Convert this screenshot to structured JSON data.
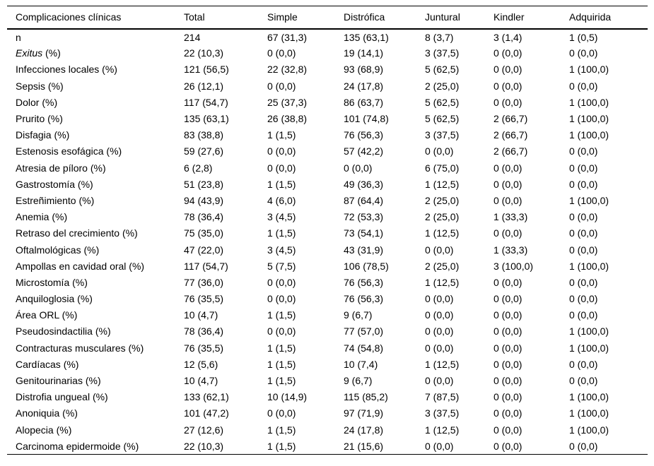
{
  "table": {
    "headers": [
      "Complicaciones clínicas",
      "Total",
      "Simple",
      "Distrófica",
      "Juntural",
      "Kindler",
      "Adquirida"
    ],
    "rows": [
      {
        "label": "n",
        "values": [
          "214",
          "67 (31,3)",
          "135 (63,1)",
          "8 (3,7)",
          "3 (1,4)",
          "1 (0,5)"
        ]
      },
      {
        "label": "Exitus (%)",
        "em": "Exitus",
        "values": [
          "22 (10,3)",
          "0 (0,0)",
          "19 (14,1)",
          "3 (37,5)",
          "0 (0,0)",
          "0 (0,0)"
        ]
      },
      {
        "label": "Infecciones locales (%)",
        "values": [
          "121 (56,5)",
          "22 (32,8)",
          "93 (68,9)",
          "5 (62,5)",
          "0 (0,0)",
          "1 (100,0)"
        ]
      },
      {
        "label": "Sepsis (%)",
        "values": [
          "26 (12,1)",
          "0 (0,0)",
          "24 (17,8)",
          "2 (25,0)",
          "0 (0,0)",
          "0 (0,0)"
        ]
      },
      {
        "label": "Dolor (%)",
        "values": [
          "117 (54,7)",
          "25 (37,3)",
          "86 (63,7)",
          "5 (62,5)",
          "0 (0,0)",
          "1 (100,0)"
        ]
      },
      {
        "label": "Prurito (%)",
        "values": [
          "135 (63,1)",
          "26 (38,8)",
          "101 (74,8)",
          "5 (62,5)",
          "2 (66,7)",
          "1 (100,0)"
        ]
      },
      {
        "label": "Disfagia (%)",
        "values": [
          "83 (38,8)",
          "1 (1,5)",
          "76 (56,3)",
          "3 (37,5)",
          "2 (66,7)",
          "1 (100,0)"
        ]
      },
      {
        "label": "Estenosis esofágica (%)",
        "values": [
          "59 (27,6)",
          "0 (0,0)",
          "57 (42,2)",
          "0 (0,0)",
          "2 (66,7)",
          "0 (0,0)"
        ]
      },
      {
        "label": "Atresia de píloro (%)",
        "values": [
          "6 (2,8)",
          "0 (0,0)",
          "0 (0,0)",
          "6 (75,0)",
          "0 (0,0)",
          "0 (0,0)"
        ]
      },
      {
        "label": "Gastrostomía (%)",
        "values": [
          "51 (23,8)",
          "1 (1,5)",
          "49 (36,3)",
          "1 (12,5)",
          "0 (0,0)",
          "0 (0,0)"
        ]
      },
      {
        "label": "Estreñimiento (%)",
        "values": [
          "94 (43,9)",
          "4 (6,0)",
          "87 (64,4)",
          "2 (25,0)",
          "0 (0,0)",
          "1 (100,0)"
        ]
      },
      {
        "label": "Anemia (%)",
        "values": [
          "78 (36,4)",
          "3 (4,5)",
          "72 (53,3)",
          "2 (25,0)",
          "1 (33,3)",
          "0 (0,0)"
        ]
      },
      {
        "label": "Retraso del crecimiento (%)",
        "values": [
          "75 (35,0)",
          "1 (1,5)",
          "73 (54,1)",
          "1 (12,5)",
          "0 (0,0)",
          "0 (0,0)"
        ]
      },
      {
        "label": "Oftalmológicas (%)",
        "values": [
          "47 (22,0)",
          "3 (4,5)",
          "43 (31,9)",
          "0 (0,0)",
          "1 (33,3)",
          "0 (0,0)"
        ]
      },
      {
        "label": "Ampollas en cavidad oral (%)",
        "values": [
          "117 (54,7)",
          "5 (7,5)",
          "106 (78,5)",
          "2 (25,0)",
          "3 (100,0)",
          "1 (100,0)"
        ]
      },
      {
        "label": "Microstomía (%)",
        "values": [
          "77 (36,0)",
          "0 (0,0)",
          "76 (56,3)",
          "1 (12,5)",
          "0 (0,0)",
          "0 (0,0)"
        ]
      },
      {
        "label": "Anquiloglosia (%)",
        "values": [
          "76 (35,5)",
          "0 (0,0)",
          "76 (56,3)",
          "0 (0,0)",
          "0 (0,0)",
          "0 (0,0)"
        ]
      },
      {
        "label": "Área ORL (%)",
        "values": [
          "10 (4,7)",
          "1 (1,5)",
          "9 (6,7)",
          "0 (0,0)",
          "0 (0,0)",
          "0 (0,0)"
        ]
      },
      {
        "label": "Pseudosindactilia (%)",
        "values": [
          "78 (36,4)",
          "0 (0,0)",
          "77 (57,0)",
          "0 (0,0)",
          "0 (0,0)",
          "1 (100,0)"
        ]
      },
      {
        "label": "Contracturas musculares (%)",
        "values": [
          "76 (35,5)",
          "1 (1,5)",
          "74 (54,8)",
          "0 (0,0)",
          "0 (0,0)",
          "1 (100,0)"
        ]
      },
      {
        "label": "Cardíacas (%)",
        "values": [
          "12 (5,6)",
          "1 (1,5)",
          "10 (7,4)",
          "1 (12,5)",
          "0 (0,0)",
          "0 (0,0)"
        ]
      },
      {
        "label": "Genitourinarias (%)",
        "values": [
          "10 (4,7)",
          "1 (1,5)",
          "9 (6,7)",
          "0 (0,0)",
          "0 (0,0)",
          "0 (0,0)"
        ]
      },
      {
        "label": "Distrofia ungueal (%)",
        "values": [
          "133 (62,1)",
          "10 (14,9)",
          "115 (85,2)",
          "7 (87,5)",
          "0 (0,0)",
          "1 (100,0)"
        ]
      },
      {
        "label": "Anoniquia (%)",
        "values": [
          "101 (47,2)",
          "0 (0,0)",
          "97 (71,9)",
          "3 (37,5)",
          "0 (0,0)",
          "1 (100,0)"
        ]
      },
      {
        "label": "Alopecia (%)",
        "values": [
          "27 (12,6)",
          "1 (1,5)",
          "24 (17,8)",
          "1 (12,5)",
          "0 (0,0)",
          "1 (100,0)"
        ]
      },
      {
        "label": "Carcinoma epidermoide (%)",
        "values": [
          "22 (10,3)",
          "1 (1,5)",
          "21 (15,6)",
          "0 (0,0)",
          "0 (0,0)",
          "0 (0,0)"
        ]
      }
    ]
  },
  "colors": {
    "text": "#000000",
    "background": "#ffffff",
    "rule": "#000000"
  }
}
